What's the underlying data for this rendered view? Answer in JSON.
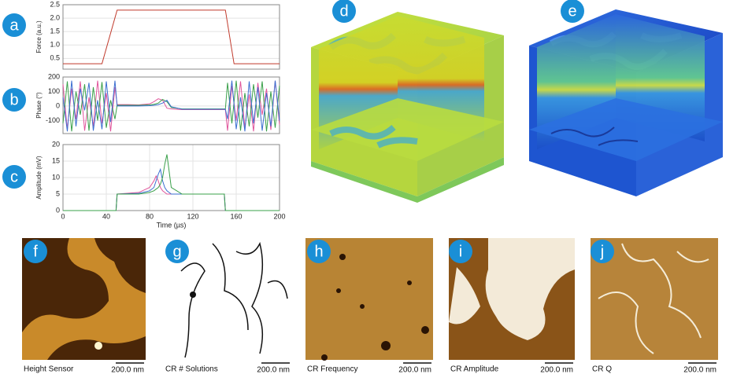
{
  "chart_data": [
    {
      "type": "line",
      "ylabel": "Force (a.u.)",
      "xlim": [
        0,
        200
      ],
      "ylim": [
        0.1,
        2.5
      ],
      "yticks": [
        0.5,
        {
          "value": 1,
          "label": "1.0"
        },
        1.5,
        {
          "value": 2,
          "label": "2.0"
        },
        2.5
      ],
      "grid": true,
      "x": [
        0,
        36,
        50,
        150,
        158,
        200
      ],
      "series": [
        {
          "color": "#c0392b",
          "values": [
            0.3,
            0.3,
            2.3,
            2.3,
            0.3,
            0.3
          ]
        }
      ]
    },
    {
      "type": "line",
      "ylabel": "Phase (°)",
      "xlim": [
        0,
        200
      ],
      "ylim": [
        -190,
        200
      ],
      "yticks": [
        -100,
        0,
        100,
        200
      ],
      "grid": true,
      "x": [
        0,
        4,
        8,
        12,
        16,
        20,
        24,
        28,
        32,
        36,
        40,
        44,
        48,
        50,
        60,
        70,
        80,
        84,
        88,
        92,
        96,
        100,
        110,
        120,
        130,
        140,
        150,
        152,
        156,
        160,
        164,
        168,
        172,
        176,
        180,
        184,
        188,
        192,
        196,
        200
      ],
      "series": [
        {
          "color": "#e0559b",
          "values": [
            150,
            -160,
            120,
            -90,
            170,
            -170,
            60,
            -140,
            175,
            -120,
            90,
            -175,
            130,
            10,
            10,
            8,
            15,
            30,
            50,
            40,
            -15,
            -20,
            -25,
            -25,
            -25,
            -25,
            -25,
            -170,
            140,
            -100,
            170,
            -150,
            80,
            -175,
            160,
            -60,
            120,
            -165,
            175,
            -130
          ]
        },
        {
          "color": "#3aa04a",
          "values": [
            -120,
            170,
            -175,
            100,
            -60,
            150,
            -170,
            130,
            -100,
            165,
            -150,
            40,
            -90,
            5,
            5,
            5,
            8,
            12,
            20,
            45,
            30,
            -10,
            -20,
            -20,
            -20,
            -20,
            -20,
            160,
            -120,
            175,
            -170,
            90,
            -140,
            150,
            -80,
            170,
            -175,
            100,
            -150,
            140
          ]
        },
        {
          "color": "#3b6fd1",
          "values": [
            60,
            -175,
            175,
            -140,
            120,
            -30,
            160,
            -170,
            40,
            -160,
            170,
            -110,
            175,
            0,
            0,
            0,
            2,
            5,
            10,
            20,
            40,
            -5,
            -22,
            -22,
            -22,
            -22,
            -22,
            -90,
            175,
            -160,
            60,
            -175,
            170,
            -120,
            130,
            -170,
            90,
            -140,
            175,
            -100
          ]
        }
      ]
    },
    {
      "type": "line",
      "ylabel": "Amplitude (mV)",
      "xlabel": "Time (µs)",
      "xlim": [
        0,
        200
      ],
      "ylim": [
        0,
        20
      ],
      "xticks": [
        0,
        40,
        80,
        120,
        160,
        200
      ],
      "yticks": [
        0,
        5,
        10,
        15,
        20
      ],
      "grid": true,
      "x": [
        0,
        49,
        50,
        70,
        80,
        84,
        86,
        88,
        90,
        92,
        94,
        96,
        98,
        100,
        110,
        149,
        150,
        200
      ],
      "series": [
        {
          "color": "#e0559b",
          "values": [
            0,
            0,
            5,
            5.5,
            7,
            9,
            10.5,
            9,
            7,
            6,
            5.5,
            5,
            5,
            5,
            5,
            5,
            0,
            0
          ]
        },
        {
          "color": "#3b6fd1",
          "values": [
            0,
            0,
            5,
            5.2,
            6,
            7,
            9,
            11,
            12.5,
            9,
            7,
            6,
            5.5,
            5,
            5,
            5,
            0,
            0
          ]
        },
        {
          "color": "#3aa04a",
          "values": [
            0,
            0,
            5,
            5,
            5.5,
            6,
            6.5,
            7,
            8,
            10,
            14,
            17,
            12,
            7,
            5,
            5,
            0,
            0
          ]
        }
      ]
    }
  ],
  "letters": [
    "a",
    "b",
    "c",
    "d",
    "e",
    "f",
    "g",
    "h",
    "i",
    "j"
  ],
  "images": [
    {
      "caption": "Height Sensor",
      "scale": "200.0 nm"
    },
    {
      "caption": "CR # Solutions",
      "scale": "200.0 nm"
    },
    {
      "caption": "CR Frequency",
      "scale": "200.0 nm"
    },
    {
      "caption": "CR Amplitude",
      "scale": "200.0 nm"
    },
    {
      "caption": "CR Q",
      "scale": "200.0 nm"
    }
  ]
}
